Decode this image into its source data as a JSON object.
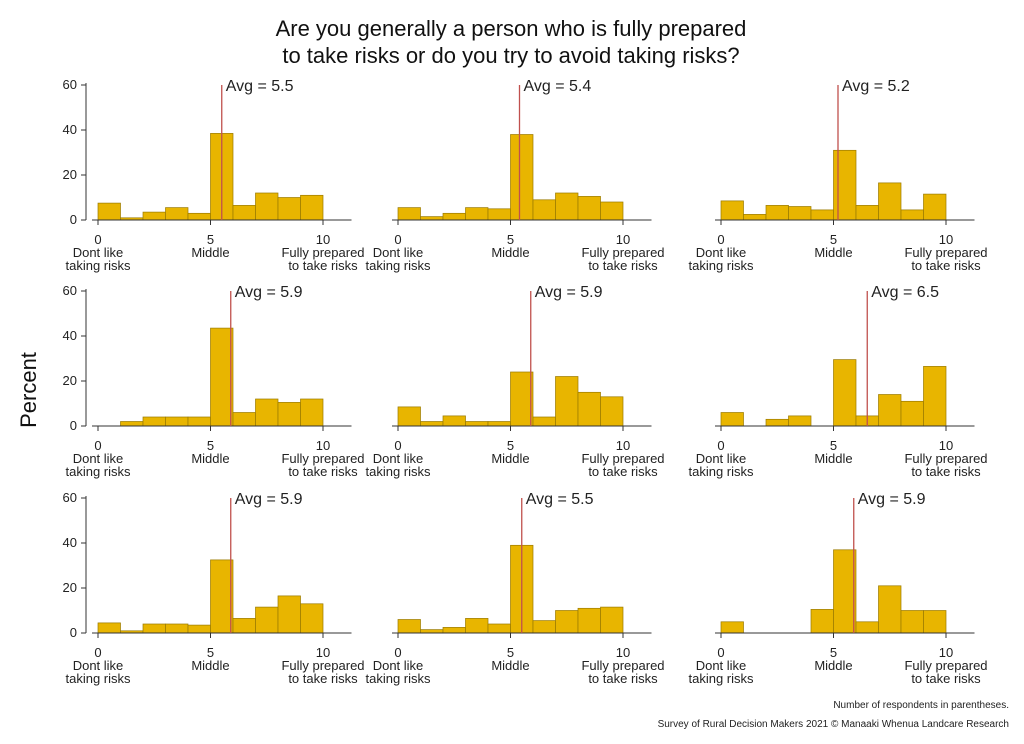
{
  "title_lines": [
    "Are you generally a person who is fully prepared",
    "to take risks or do you try to avoid taking risks?"
  ],
  "footnote": "Number of respondents in parentheses.",
  "source": "Survey of Rural Decision Makers 2021 © Manaaki Whenua Landcare Research",
  "colors": {
    "bar": "#E8B500",
    "bar_edge": "#9A7A00",
    "avg_line": "#C0504D",
    "axis": "#333333"
  },
  "chart_data": {
    "type": "bar",
    "layout": "3x3 small multiples",
    "ylabel": "Percent",
    "ylim": [
      0,
      60
    ],
    "yticks": [
      0,
      20,
      40,
      60
    ],
    "x_bins": [
      0,
      1,
      2,
      3,
      4,
      5,
      6,
      7,
      8,
      9,
      10
    ],
    "xlim": [
      0,
      10
    ],
    "xticks": [
      0,
      5,
      10
    ],
    "xtick_labels": [
      [
        "0",
        "Dont like",
        "taking risks"
      ],
      [
        "5",
        "Middle"
      ],
      [
        "10",
        "Fully prepared",
        "to take risks"
      ]
    ],
    "grid": false,
    "panels": [
      {
        "avg_label": "Avg = 5.5",
        "avg": 5.5,
        "values": [
          7.5,
          1,
          3.5,
          5.5,
          3,
          38.5,
          6.5,
          12,
          10,
          11,
          0
        ]
      },
      {
        "avg_label": "Avg = 5.4",
        "avg": 5.4,
        "values": [
          5.5,
          1.5,
          3,
          5.5,
          5,
          38,
          9,
          12,
          10.5,
          8,
          0
        ]
      },
      {
        "avg_label": "Avg = 5.2",
        "avg": 5.2,
        "values": [
          8.5,
          2.5,
          6.5,
          6,
          4.5,
          31,
          6.5,
          16.5,
          4.5,
          11.5,
          0
        ]
      },
      {
        "avg_label": "Avg = 5.9",
        "avg": 5.9,
        "values": [
          0,
          2,
          4,
          4,
          4,
          43.5,
          6,
          12,
          10.5,
          12,
          0
        ]
      },
      {
        "avg_label": "Avg = 5.9",
        "avg": 5.9,
        "values": [
          8.5,
          2,
          4.5,
          2,
          2,
          24,
          4,
          22,
          15,
          13,
          0
        ]
      },
      {
        "avg_label": "Avg = 6.5",
        "avg": 6.5,
        "values": [
          6,
          0,
          3,
          4.5,
          0,
          29.5,
          4.5,
          14,
          11,
          26.5,
          0
        ]
      },
      {
        "avg_label": "Avg = 5.9",
        "avg": 5.9,
        "values": [
          4.5,
          1,
          4,
          4,
          3.5,
          32.5,
          6.5,
          11.5,
          16.5,
          13,
          0
        ]
      },
      {
        "avg_label": "Avg = 5.5",
        "avg": 5.5,
        "values": [
          6,
          1.5,
          2.5,
          6.5,
          4,
          39,
          5.5,
          10,
          11,
          11.5,
          0
        ]
      },
      {
        "avg_label": "Avg = 5.9",
        "avg": 5.9,
        "values": [
          5,
          0,
          0,
          0,
          10.5,
          37,
          5,
          21,
          10,
          10,
          0
        ]
      }
    ]
  }
}
